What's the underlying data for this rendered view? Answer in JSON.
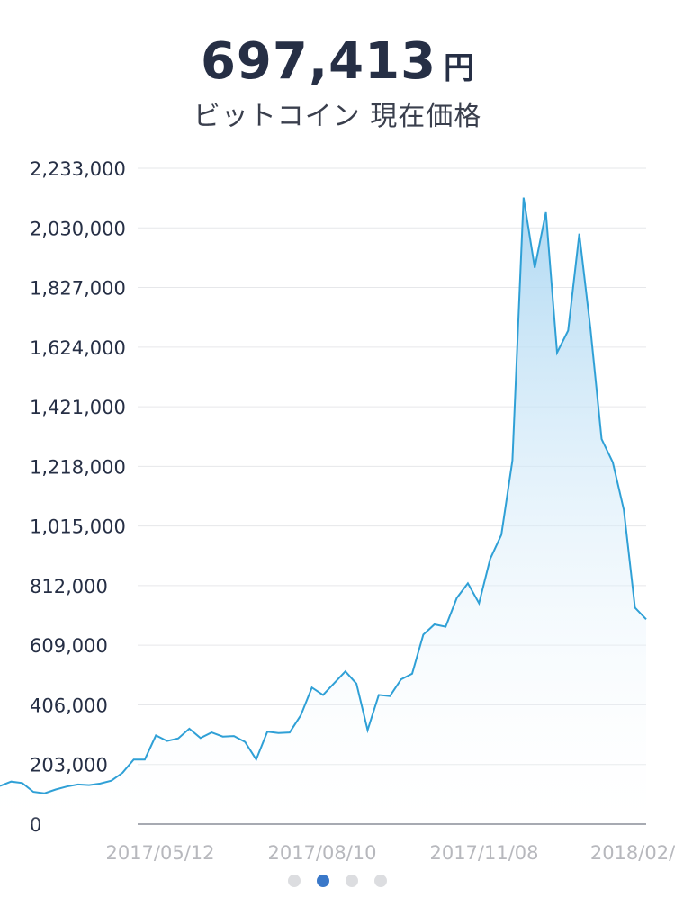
{
  "header": {
    "price": "697,413",
    "unit": "円",
    "subtitle": "ビットコイン 現在価格"
  },
  "colors": {
    "line": "#2fa0d6",
    "fill_top": "#aad6f2",
    "accent": "#3a78c9",
    "text": "#262f45"
  },
  "chart_data": {
    "type": "area",
    "title": "",
    "xlabel": "",
    "ylabel": "",
    "ylim": [
      0,
      2233000
    ],
    "y_ticks": [
      "2,233,000",
      "2,030,000",
      "1,827,000",
      "1,624,000",
      "1,421,000",
      "1,218,000",
      "1,015,000",
      "812,000",
      "609,000",
      "406,000",
      "203,000",
      "0"
    ],
    "y_tick_values": [
      2233000,
      2030000,
      1827000,
      1624000,
      1421000,
      1218000,
      1015000,
      812000,
      609000,
      406000,
      203000,
      0
    ],
    "x_ticks": [
      "2017/05/12",
      "2017/08/10",
      "2017/11/08",
      "2018/02/"
    ],
    "grid": true,
    "series": [
      {
        "values": [
          130000,
          145000,
          140000,
          110000,
          105000,
          118000,
          128000,
          135000,
          133000,
          138000,
          148000,
          175000,
          220000,
          220000,
          302000,
          283000,
          292000,
          325000,
          293000,
          312000,
          298000,
          300000,
          280000,
          220000,
          315000,
          310000,
          312000,
          370000,
          465000,
          440000,
          480000,
          520000,
          478000,
          320000,
          440000,
          436000,
          493000,
          512000,
          645000,
          680000,
          672000,
          770000,
          820000,
          752000,
          903000,
          985000,
          1238000,
          2133000,
          1894000,
          2083000,
          1605000,
          1680000,
          2010000,
          1687000,
          1311000,
          1232000,
          1070000,
          737000,
          697413
        ]
      }
    ]
  },
  "pager": {
    "count": 4,
    "active": 1
  }
}
